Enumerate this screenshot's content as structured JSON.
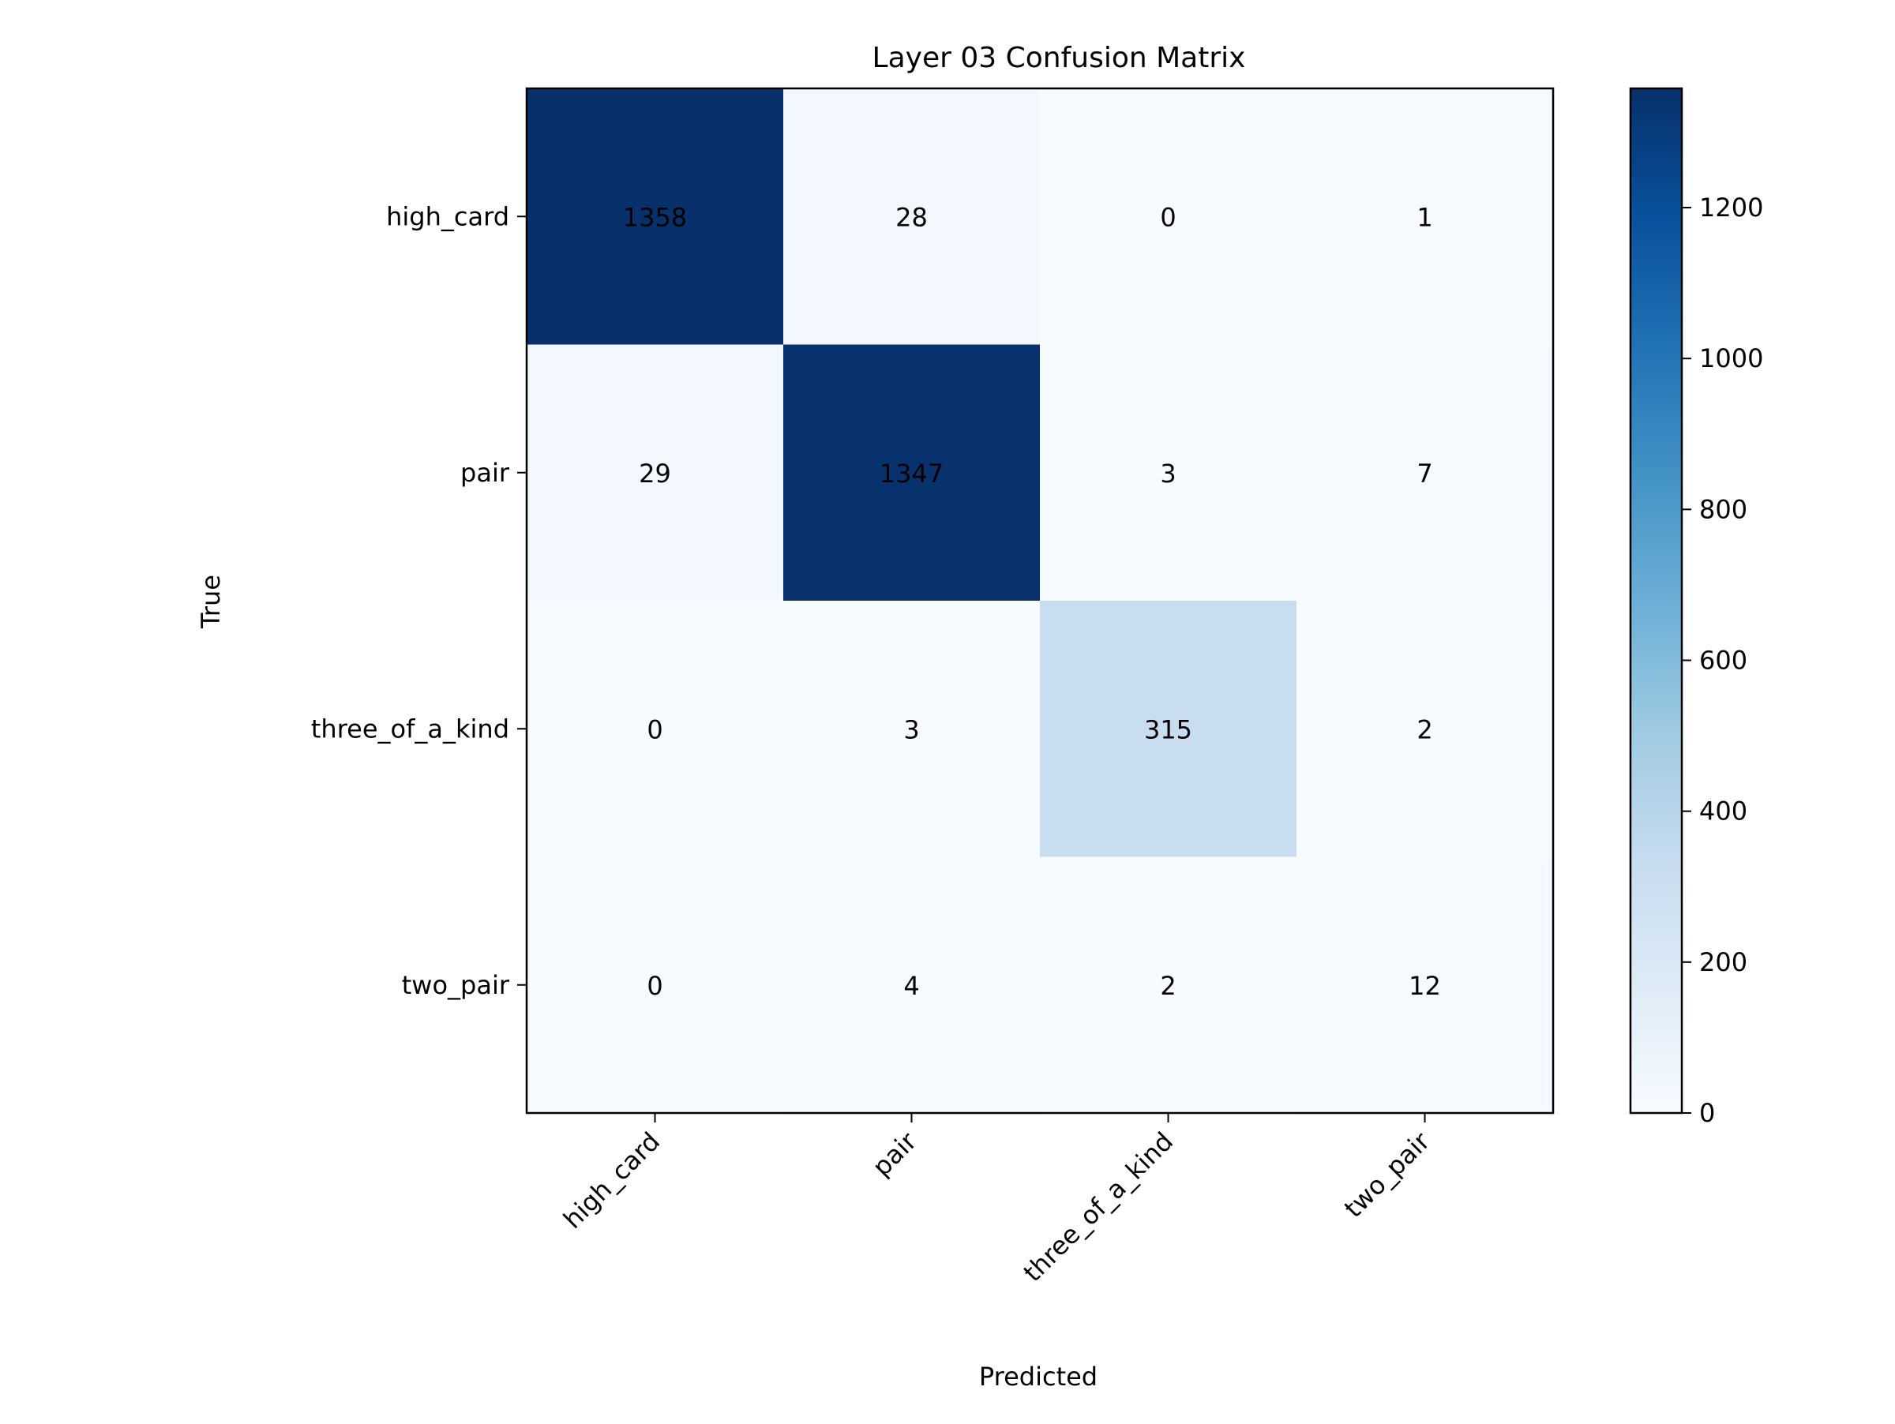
{
  "chart_data": {
    "type": "heatmap",
    "title": "Layer 03 Confusion Matrix",
    "xlabel": "Predicted",
    "ylabel": "True",
    "x_categories": [
      "high_card",
      "pair",
      "three_of_a_kind",
      "two_pair"
    ],
    "y_categories": [
      "high_card",
      "pair",
      "three_of_a_kind",
      "two_pair"
    ],
    "values": [
      [
        1358,
        28,
        0,
        1
      ],
      [
        29,
        1347,
        3,
        7
      ],
      [
        0,
        3,
        315,
        2
      ],
      [
        0,
        4,
        2,
        12
      ]
    ],
    "colormap": "Blues",
    "colorbar": {
      "range": [
        0,
        1358
      ],
      "ticks": [
        0,
        200,
        400,
        600,
        800,
        1000,
        1200
      ],
      "tick_labels": [
        "0",
        "200",
        "400",
        "600",
        "800",
        "1000",
        "1200"
      ]
    }
  }
}
